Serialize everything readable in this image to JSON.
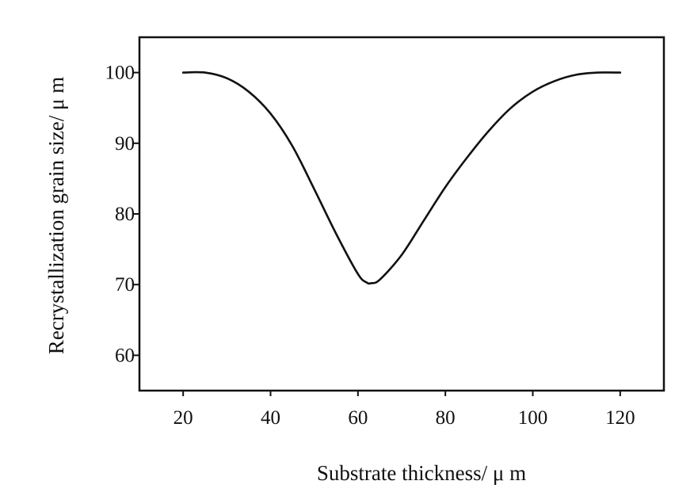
{
  "chart_data": {
    "type": "line",
    "title": "",
    "xlabel": "Substrate thickness/ μ m",
    "ylabel": "Recrystallization grain size/ μ m",
    "xlim": [
      10,
      130
    ],
    "ylim": [
      55,
      105
    ],
    "xticks": [
      20,
      40,
      60,
      80,
      100,
      120
    ],
    "yticks": [
      60,
      70,
      80,
      90,
      100
    ],
    "grid": false,
    "legend": "none",
    "series": [
      {
        "color": "#111111",
        "x": [
          20,
          25,
          30,
          35,
          40,
          45,
          50,
          55,
          60,
          62,
          63,
          65,
          70,
          75,
          80,
          85,
          90,
          95,
          100,
          105,
          110,
          115,
          120
        ],
        "y": [
          100,
          100,
          99.2,
          97.3,
          94.2,
          89.6,
          83.5,
          77.2,
          71.5,
          70.3,
          70.2,
          70.7,
          74.2,
          79.0,
          83.8,
          88.0,
          91.8,
          95.0,
          97.3,
          98.8,
          99.7,
          100,
          100
        ]
      }
    ]
  }
}
